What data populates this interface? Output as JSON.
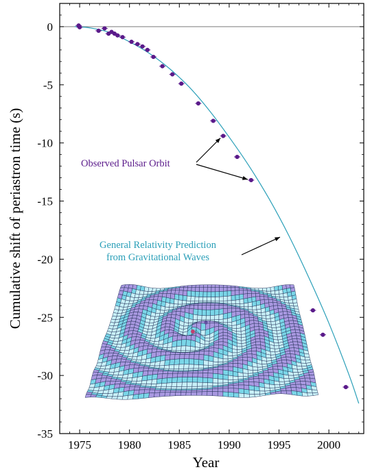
{
  "chart_data": {
    "type": "scatter",
    "xlabel": "Year",
    "ylabel": "Cumulative shift of periastron time (s)",
    "xlim": [
      1973,
      2003.5
    ],
    "ylim": [
      -35,
      2
    ],
    "xticks": [
      1975,
      1980,
      1985,
      1990,
      1995,
      2000
    ],
    "yticks": [
      0,
      -5,
      -10,
      -15,
      -20,
      -25,
      -30,
      -35
    ],
    "xtick_labels": [
      "1975",
      "1980",
      "1985",
      "1990",
      "1995",
      "2000"
    ],
    "ytick_labels": [
      "0",
      "-5",
      "-10",
      "-15",
      "-20",
      "-25",
      "-30",
      "-35"
    ],
    "grid": false,
    "reference_line_y": 0,
    "series": [
      {
        "kind": "observed",
        "color": "#5a1a8a",
        "x": [
          1974.9,
          1975.0,
          1976.9,
          1977.5,
          1977.9,
          1978.2,
          1978.5,
          1978.8,
          1979.3,
          1980.2,
          1980.8,
          1981.3,
          1981.8,
          1982.4,
          1983.3,
          1984.3,
          1985.2,
          1986.9,
          1988.4,
          1989.4,
          1990.8,
          1992.2,
          1998.4,
          1999.4,
          2001.7
        ],
        "y": [
          0.1,
          -0.05,
          -0.35,
          -0.15,
          -0.6,
          -0.45,
          -0.6,
          -0.75,
          -0.9,
          -1.3,
          -1.5,
          -1.7,
          -2.0,
          -2.6,
          -3.4,
          -4.1,
          -4.9,
          -6.6,
          -8.1,
          -9.4,
          -11.2,
          -13.2,
          -24.4,
          -26.5,
          -31.0
        ]
      },
      {
        "kind": "prediction",
        "color": "#2a9fb8",
        "x": [
          1974.5,
          1976,
          1978,
          1980,
          1982,
          1984,
          1986,
          1988,
          1990,
          1992,
          1994,
          1996,
          1998,
          2000,
          2002,
          2003
        ],
        "y": [
          0,
          -0.1,
          -0.5,
          -1.3,
          -2.3,
          -3.6,
          -5.2,
          -7.2,
          -9.5,
          -12.0,
          -14.8,
          -18.0,
          -21.6,
          -25.5,
          -29.9,
          -32.4
        ]
      }
    ],
    "annotations": [
      {
        "text": "Observed Pulsar Orbit",
        "color": "#5a1a8a"
      },
      {
        "line1": "General Relativity Prediction",
        "line2": "from Gravitational Waves",
        "color": "#2a9fb8"
      }
    ]
  },
  "illustration": {
    "name": "spacetime-ripple-mesh",
    "mesh_color": "#1c2a50",
    "fill_light": "#c8f0f8",
    "fill_mid": "#7ad6e8",
    "fill_violet": "#a898e0",
    "star_color_1": "#c04070",
    "star_color_2": "#6050a0"
  }
}
